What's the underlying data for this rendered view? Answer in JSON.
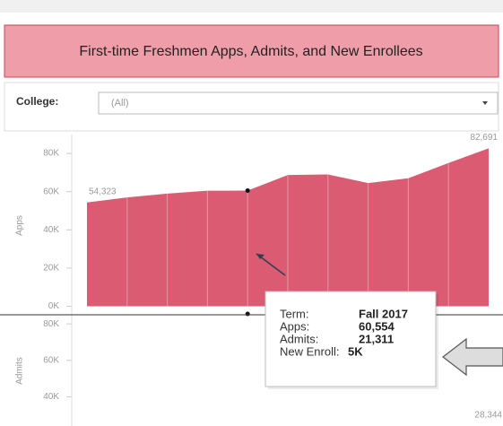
{
  "header": {
    "title": "First-time Freshmen Apps, Admits, and New Enrollees"
  },
  "filter": {
    "label": "College:",
    "value": "(All)"
  },
  "chart_data": [
    {
      "type": "area",
      "y_label": "Apps",
      "color": "#db5b73",
      "categories": [
        null,
        null,
        null,
        null,
        null,
        null,
        null,
        null,
        null,
        null,
        null
      ],
      "values": [
        54323,
        57000,
        59000,
        60500,
        60554,
        68700,
        69000,
        64500,
        67000,
        75000,
        82691
      ],
      "value_labels": [
        "54,323",
        null,
        null,
        null,
        null,
        null,
        null,
        null,
        null,
        null,
        "82,691"
      ],
      "ylim": [
        -4000,
        88500
      ],
      "yticks": [
        {
          "value": 0,
          "label": "0K"
        },
        {
          "value": 20000,
          "label": "20K"
        },
        {
          "value": 40000,
          "label": "40K"
        },
        {
          "value": 60000,
          "label": "60K"
        },
        {
          "value": 80000,
          "label": "80K"
        }
      ]
    },
    {
      "type": "area",
      "y_label": "Admits",
      "ylim": [
        24000,
        84500
      ],
      "yticks": [
        {
          "value": 40000,
          "label": "40K"
        },
        {
          "value": 60000,
          "label": "60K"
        },
        {
          "value": 80000,
          "label": "80K"
        }
      ],
      "annotation": "28,344"
    }
  ],
  "tooltip": {
    "rows": [
      {
        "label": "Term:",
        "value": "Fall 2017"
      },
      {
        "label": "Apps:",
        "value": "60,554"
      },
      {
        "label": "Admits:",
        "value": "21,311"
      },
      {
        "label": "New Enroll:",
        "value": "5K"
      }
    ]
  }
}
